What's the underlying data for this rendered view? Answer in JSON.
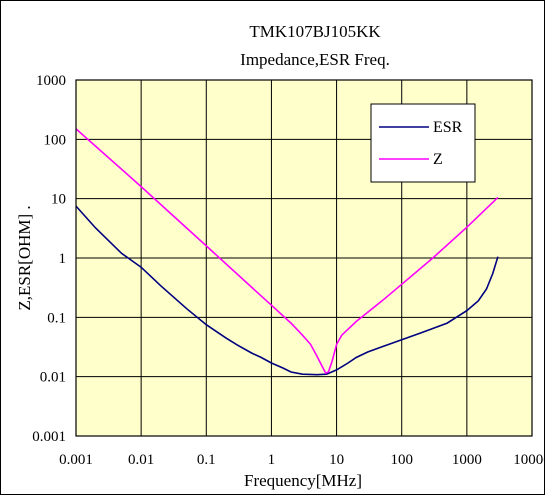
{
  "chart_data": {
    "type": "line",
    "title": "TMK107BJ105KK",
    "subtitle": "Impedance,ESR Freq.",
    "xlabel": "Frequency[MHz]",
    "ylabel": "Z,ESR[OHM] .",
    "x_scale": "log",
    "y_scale": "log",
    "xlim": [
      0.001,
      10000
    ],
    "ylim": [
      0.001,
      1000
    ],
    "x_ticks": [
      "0.001",
      "0.01",
      "0.1",
      "1",
      "10",
      "100",
      "1000",
      "10000"
    ],
    "y_ticks": [
      "0.001",
      "0.01",
      "0.1",
      "1",
      "10",
      "100",
      "1000"
    ],
    "grid": true,
    "legend_position": "top-right",
    "plot_background": "#ffffcc",
    "series": [
      {
        "name": "ESR",
        "color": "#000080",
        "points": [
          [
            0.001,
            7.5
          ],
          [
            0.002,
            3.2
          ],
          [
            0.005,
            1.2
          ],
          [
            0.01,
            0.7
          ],
          [
            0.02,
            0.34
          ],
          [
            0.05,
            0.14
          ],
          [
            0.1,
            0.075
          ],
          [
            0.2,
            0.045
          ],
          [
            0.3,
            0.034
          ],
          [
            0.5,
            0.025
          ],
          [
            0.7,
            0.021
          ],
          [
            1,
            0.017
          ],
          [
            1.5,
            0.014
          ],
          [
            2,
            0.012
          ],
          [
            3,
            0.011
          ],
          [
            5,
            0.0108
          ],
          [
            7,
            0.011
          ],
          [
            10,
            0.013
          ],
          [
            15,
            0.017
          ],
          [
            20,
            0.021
          ],
          [
            30,
            0.026
          ],
          [
            50,
            0.032
          ],
          [
            100,
            0.042
          ],
          [
            200,
            0.055
          ],
          [
            500,
            0.08
          ],
          [
            1000,
            0.13
          ],
          [
            1500,
            0.19
          ],
          [
            2000,
            0.3
          ],
          [
            2500,
            0.55
          ],
          [
            3000,
            1.05
          ]
        ]
      },
      {
        "name": "Z",
        "color": "#ff00ff",
        "points": [
          [
            0.001,
            150
          ],
          [
            0.01,
            16
          ],
          [
            0.1,
            1.6
          ],
          [
            0.5,
            0.32
          ],
          [
            1,
            0.16
          ],
          [
            2,
            0.08
          ],
          [
            3,
            0.05
          ],
          [
            4,
            0.035
          ],
          [
            5,
            0.022
          ],
          [
            6,
            0.015
          ],
          [
            6.8,
            0.0115
          ],
          [
            7.5,
            0.012
          ],
          [
            8.5,
            0.018
          ],
          [
            10,
            0.035
          ],
          [
            12,
            0.05
          ],
          [
            20,
            0.085
          ],
          [
            50,
            0.19
          ],
          [
            100,
            0.36
          ],
          [
            300,
            1.0
          ],
          [
            1000,
            3.3
          ],
          [
            3000,
            10.5
          ]
        ]
      }
    ]
  }
}
